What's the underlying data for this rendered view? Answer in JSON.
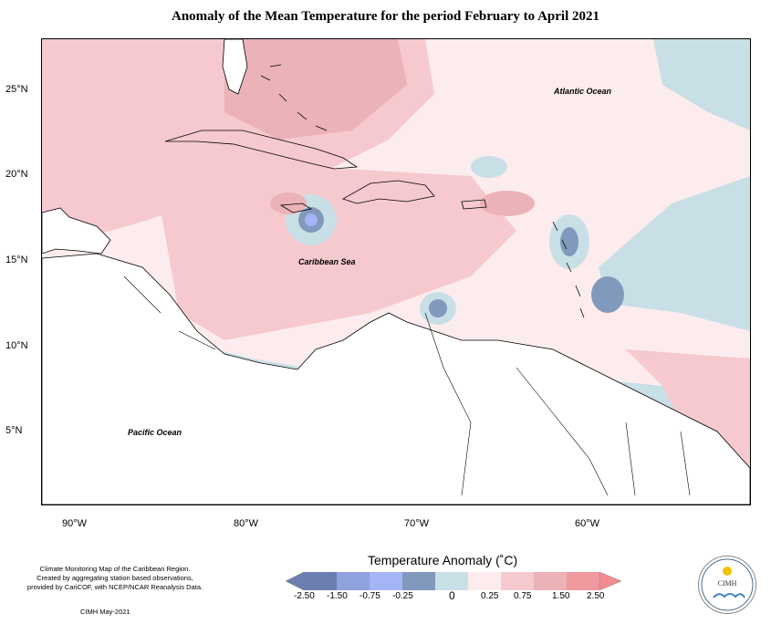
{
  "title": "Anomaly of the Mean Temperature for the period February to April 2021",
  "latitude_labels": [
    "25°N",
    "20°N",
    "15°N",
    "10°N",
    "5°N"
  ],
  "longitude_labels": [
    "90°W",
    "80°W",
    "70°W",
    "60°W"
  ],
  "map_labels": {
    "atlantic": "Atlantic Ocean",
    "caribbean": "Caribbean Sea",
    "pacific": "Pacific Ocean"
  },
  "footnote": {
    "line1": "Climate Monitoring Map of the Caribbean Region.",
    "line2": "Created by aggregating station based observations,",
    "line3": "provided by CariCOF, with NCEP/NCAR Reanalysis Data.",
    "credit": "CIMH May-2021"
  },
  "legend": {
    "title": "Temperature Anomaly (˚C)",
    "ticks": [
      "-2.50",
      "-1.50",
      "-0.75",
      "-0.25",
      "0",
      "0.25",
      "0.75",
      "1.50",
      "2.50"
    ],
    "colors": [
      "#6c7fb0",
      "#8fa2de",
      "#a5b4f7",
      "#8199bd",
      "#c9dfe6",
      "#fdeced",
      "#f6c9cf",
      "#ebb2b8",
      "#f09aa0",
      "#f28a8f"
    ]
  },
  "logo": {
    "name": "CIMH",
    "icon": "sun-cloud-logo"
  }
}
